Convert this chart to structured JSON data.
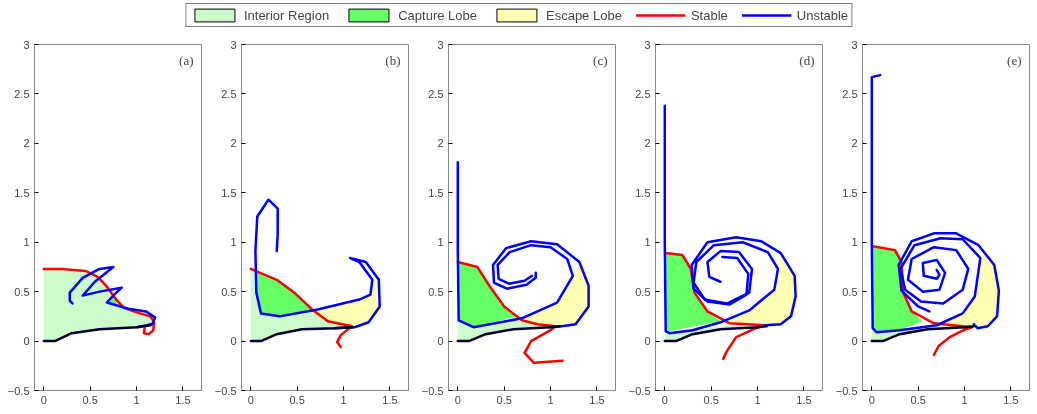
{
  "chart_data": [
    {
      "type": "line",
      "xlim": [
        -0.1,
        1.7
      ],
      "ylim": [
        -0.5,
        3
      ],
      "xticks": [
        0,
        0.5,
        1,
        1.5
      ],
      "yticks": [
        -0.5,
        0,
        0.5,
        1,
        1.5,
        2,
        2.5,
        3
      ],
      "grid": false,
      "legend": "top",
      "annotations": [
        "(a)"
      ],
      "series": [
        {
          "name": "Interior Region",
          "type": "area",
          "color": "#ccfccc",
          "x": [
            0,
            0,
            0.2,
            0.45,
            0.58,
            0.68,
            0.78,
            0.86,
            1.0,
            1.15,
            1.19,
            1.15,
            1.0,
            0.6,
            0.3,
            0.12
          ],
          "values": [
            0,
            0.73,
            0.73,
            0.71,
            0.65,
            0.55,
            0.42,
            0.34,
            0.29,
            0.25,
            0.19,
            0.16,
            0.14,
            0.12,
            0.08,
            0
          ]
        },
        {
          "name": "Capture Lobe",
          "type": "area",
          "color": "#66ff66",
          "x": [
            0.68,
            0.75,
            0.8
          ],
          "values": [
            0.39,
            0.45,
            0.37
          ]
        },
        {
          "name": "Escape Lobe",
          "type": "area",
          "color": "#ffffb3"
        },
        {
          "name": "Stable",
          "color": "#ff0000",
          "x": [
            0,
            0.2,
            0.45,
            0.58,
            0.68,
            0.78,
            0.86,
            1.0,
            1.15,
            1.19,
            1.18,
            1.13,
            1.08,
            1.09,
            1.15
          ],
          "values": [
            0.73,
            0.73,
            0.71,
            0.65,
            0.55,
            0.42,
            0.34,
            0.29,
            0.25,
            0.19,
            0.11,
            0.07,
            0.08,
            0.15,
            0.17
          ]
        },
        {
          "name": "Unstable",
          "color": "#0000ff",
          "x": [
            1.0,
            1.17,
            1.2,
            1.1,
            0.9,
            0.68,
            0.76,
            0.84,
            0.6,
            0.42,
            0.55,
            0.75,
            0.6,
            0.42,
            0.28,
            0.28,
            0.31
          ],
          "values": [
            0.14,
            0.17,
            0.24,
            0.3,
            0.33,
            0.39,
            0.47,
            0.54,
            0.5,
            0.46,
            0.6,
            0.75,
            0.73,
            0.64,
            0.49,
            0.41,
            0.38
          ]
        },
        {
          "color": "#000033",
          "x": [
            0,
            0.12,
            0.3,
            0.6,
            1.0,
            1.15
          ],
          "values": [
            0,
            0,
            0.08,
            0.12,
            0.14,
            0.16
          ]
        }
      ]
    },
    {
      "type": "line",
      "xlim": [
        -0.1,
        1.7
      ],
      "ylim": [
        -0.5,
        3
      ],
      "xticks": [
        0,
        0.5,
        1,
        1.5
      ],
      "yticks": [
        -0.5,
        0,
        0.5,
        1,
        1.5,
        2,
        2.5,
        3
      ],
      "grid": false,
      "annotations": [
        "(b)"
      ],
      "series": [
        {
          "type": "area",
          "color": "#ccfccc",
          "x": [
            0,
            0,
            0.28,
            0.48,
            0.66,
            0.83,
            1.0,
            1.09,
            0.9,
            0.55,
            0.28,
            0.11
          ],
          "values": [
            0,
            0.73,
            0.62,
            0.48,
            0.32,
            0.2,
            0.15,
            0.15,
            0.13,
            0.12,
            0.07,
            0
          ]
        },
        {
          "type": "area",
          "color": "#66ff66",
          "x": [
            0.02,
            0.28,
            0.48,
            0.67,
            0.31,
            0.11,
            0.06,
            0.05
          ],
          "values": [
            0.73,
            0.62,
            0.48,
            0.3,
            0.25,
            0.28,
            0.49,
            0.7
          ]
        },
        {
          "type": "area",
          "color": "#ffffb3",
          "x": [
            0.67,
            0.83,
            1.09,
            1.27,
            1.39,
            1.38,
            1.31,
            1.29,
            1.17,
            0.9
          ],
          "values": [
            0.3,
            0.2,
            0.15,
            0.19,
            0.35,
            0.6,
            0.62,
            0.47,
            0.42,
            0.36
          ]
        },
        {
          "color": "#ff0000",
          "x": [
            0,
            0.28,
            0.48,
            0.66,
            0.83,
            1.09,
            0.97,
            0.93,
            0.97
          ],
          "values": [
            0.73,
            0.62,
            0.48,
            0.32,
            0.2,
            0.15,
            0.06,
            -0.01,
            -0.06
          ]
        },
        {
          "color": "#0000ff",
          "x": [
            0.9,
            1.12,
            1.27,
            1.39,
            1.38,
            1.24,
            1.07,
            1.17,
            1.31,
            1.29,
            1.17,
            0.72,
            0.31,
            0.11,
            0.06,
            0.05,
            0.07,
            0.19,
            0.29,
            0.29,
            0.28
          ],
          "values": [
            0.13,
            0.14,
            0.19,
            0.35,
            0.62,
            0.8,
            0.84,
            0.8,
            0.62,
            0.47,
            0.42,
            0.32,
            0.25,
            0.28,
            0.49,
            0.91,
            1.26,
            1.43,
            1.34,
            1.08,
            0.91
          ]
        },
        {
          "color": "#000033",
          "x": [
            0,
            0.11,
            0.28,
            0.55,
            0.9,
            1.1
          ],
          "values": [
            0,
            0,
            0.07,
            0.12,
            0.13,
            0.14
          ]
        }
      ]
    },
    {
      "type": "line",
      "xlim": [
        -0.1,
        1.7
      ],
      "ylim": [
        -0.5,
        3
      ],
      "xticks": [
        0,
        0.5,
        1,
        1.5
      ],
      "yticks": [
        -0.5,
        0,
        0.5,
        1,
        1.5,
        2,
        2.5,
        3
      ],
      "grid": false,
      "annotations": [
        "(c)"
      ],
      "series": [
        {
          "type": "area",
          "color": "#ccfccc",
          "x": [
            0,
            0,
            0.21,
            0.34,
            0.5,
            0.69,
            0.86,
            1.05,
            0.6,
            0.3,
            0.12
          ],
          "values": [
            0,
            0.8,
            0.75,
            0.56,
            0.35,
            0.21,
            0.17,
            0.15,
            0.12,
            0.07,
            0
          ]
        },
        {
          "type": "area",
          "color": "#66ff66",
          "x": [
            0.01,
            0.21,
            0.34,
            0.5,
            0.62,
            0.17,
            0.01
          ],
          "values": [
            0.8,
            0.75,
            0.56,
            0.35,
            0.25,
            0.14,
            0.21
          ]
        },
        {
          "type": "area",
          "color": "#ffffb3",
          "x": [
            0.62,
            0.69,
            0.86,
            1.12,
            1.27,
            1.41,
            1.41,
            1.31,
            1.24,
            1.07,
            0.69
          ],
          "values": [
            0.25,
            0.21,
            0.17,
            0.15,
            0.17,
            0.35,
            0.56,
            0.8,
            0.66,
            0.39,
            0.23
          ]
        },
        {
          "color": "#ff0000",
          "x": [
            0,
            0.21,
            0.34,
            0.5,
            0.69,
            0.86,
            1.05,
            1.0,
            0.79,
            0.72,
            0.82,
            1.13
          ],
          "values": [
            0.8,
            0.75,
            0.56,
            0.35,
            0.21,
            0.17,
            0.15,
            0.11,
            0,
            -0.12,
            -0.22,
            -0.2
          ]
        },
        {
          "color": "#0000ff",
          "x": [
            1.0,
            1.12,
            1.27,
            1.41,
            1.41,
            1.31,
            1.07,
            0.79,
            0.52,
            0.38,
            0.39,
            0.53,
            0.74,
            0.84,
            0.84
          ],
          "values": [
            0.14,
            0.15,
            0.17,
            0.35,
            0.56,
            0.8,
            0.98,
            1.01,
            0.94,
            0.77,
            0.59,
            0.53,
            0.57,
            0.64,
            0.69
          ]
        },
        {
          "color": "#0000ff",
          "x": [
            0,
            0,
            0.01,
            0.17,
            0.69,
            1.07,
            1.24,
            1.18,
            1.0,
            0.79,
            0.56,
            0.43,
            0.44,
            0.55,
            0.72,
            0.8
          ],
          "values": [
            1.81,
            0.91,
            0.21,
            0.14,
            0.23,
            0.39,
            0.66,
            0.83,
            0.95,
            0.97,
            0.9,
            0.77,
            0.63,
            0.58,
            0.61,
            0.66
          ]
        },
        {
          "color": "#000033",
          "x": [
            0,
            0.12,
            0.3,
            0.6,
            1.0,
            1.1
          ],
          "values": [
            0,
            0,
            0.07,
            0.12,
            0.14,
            0.15
          ]
        }
      ]
    },
    {
      "type": "line",
      "xlim": [
        -0.1,
        1.7
      ],
      "ylim": [
        -0.5,
        3
      ],
      "xticks": [
        0,
        0.5,
        1,
        1.5
      ],
      "yticks": [
        -0.5,
        0,
        0.5,
        1,
        1.5,
        2,
        2.5,
        3
      ],
      "grid": false,
      "annotations": [
        "(d)"
      ],
      "series": [
        {
          "type": "area",
          "color": "#ccfccc",
          "x": [
            0,
            0,
            0.3,
            0.7,
            1.08,
            0.6,
            0.3,
            0.12
          ],
          "values": [
            0,
            0.1,
            0.11,
            0.16,
            0.16,
            0.12,
            0.07,
            0
          ]
        },
        {
          "type": "area",
          "color": "#66ff66",
          "x": [
            0.01,
            0.19,
            0.28,
            0.32,
            0.46,
            0.6,
            0.05,
            0.01
          ],
          "values": [
            0.89,
            0.87,
            0.73,
            0.49,
            0.3,
            0.2,
            0.1,
            0.12
          ]
        },
        {
          "type": "area",
          "color": "#ffffb3",
          "x": [
            0.6,
            0.7,
            1.08,
            1.25,
            1.36,
            1.41,
            1.4,
            1.25,
            1.22,
            1.18,
            0.91
          ],
          "values": [
            0.2,
            0.18,
            0.16,
            0.17,
            0.25,
            0.45,
            0.66,
            0.89,
            0.73,
            0.52,
            0.31
          ]
        },
        {
          "color": "#ff0000",
          "x": [
            0.01,
            0.19,
            0.28,
            0.32,
            0.46,
            0.7,
            1.08,
            0.98,
            0.77,
            0.67,
            0.63
          ],
          "values": [
            0.89,
            0.87,
            0.73,
            0.49,
            0.3,
            0.18,
            0.16,
            0.13,
            0.04,
            -0.1,
            -0.18
          ]
        },
        {
          "color": "#0000ff",
          "x": [
            0,
            0,
            0.01,
            0.05,
            0.3,
            0.6,
            0.91,
            1.18,
            1.22,
            1.11,
            0.84,
            0.53,
            0.34,
            0.31,
            0.43,
            0.67,
            0.91,
            0.94,
            0.8,
            0.6,
            0.46,
            0.48,
            0.6
          ],
          "values": [
            2.38,
            1.0,
            0.1,
            0.08,
            0.11,
            0.19,
            0.31,
            0.52,
            0.73,
            0.9,
            1.0,
            0.97,
            0.8,
            0.59,
            0.42,
            0.38,
            0.49,
            0.73,
            0.9,
            0.91,
            0.8,
            0.65,
            0.6
          ]
        },
        {
          "color": "#0000ff",
          "x": [
            1.08,
            1.25,
            1.36,
            1.41,
            1.4,
            1.25,
            1.04,
            0.77,
            0.46,
            0.29,
            0.31,
            0.46,
            0.7,
            0.88,
            0.9,
            0.78,
            0.62
          ],
          "values": [
            0.16,
            0.17,
            0.25,
            0.45,
            0.66,
            0.89,
            1.01,
            1.05,
            1.0,
            0.77,
            0.53,
            0.4,
            0.37,
            0.47,
            0.68,
            0.84,
            0.85
          ]
        },
        {
          "color": "#000033",
          "x": [
            0,
            0.12,
            0.3,
            0.6,
            1.0,
            1.1
          ],
          "values": [
            0,
            0,
            0.07,
            0.12,
            0.14,
            0.15
          ]
        }
      ]
    },
    {
      "type": "line",
      "xlim": [
        -0.1,
        1.7
      ],
      "ylim": [
        -0.5,
        3
      ],
      "xticks": [
        0,
        0.5,
        1,
        1.5
      ],
      "yticks": [
        -0.5,
        0,
        0.5,
        1,
        1.5,
        2,
        2.5,
        3
      ],
      "grid": false,
      "annotations": [
        "(e)"
      ],
      "series": [
        {
          "type": "area",
          "color": "#ccfccc",
          "x": [
            0,
            0,
            0.3,
            0.7,
            1.08,
            0.6,
            0.3,
            0.12
          ],
          "values": [
            0,
            0.12,
            0.11,
            0.16,
            0.14,
            0.12,
            0.07,
            0
          ]
        },
        {
          "type": "area",
          "color": "#66ff66",
          "x": [
            0.01,
            0.25,
            0.32,
            0.34,
            0.43,
            0.55,
            0.3,
            0.05,
            0.01
          ],
          "values": [
            0.96,
            0.92,
            0.8,
            0.49,
            0.3,
            0.2,
            0.11,
            0.09,
            0.13
          ]
        },
        {
          "type": "area",
          "color": "#ffffb3",
          "x": [
            0.6,
            0.67,
            1.08,
            1.14,
            1.25,
            1.35,
            1.37,
            1.32,
            1.15,
            1.17,
            1.11,
            0.98,
            0.7
          ],
          "values": [
            0.2,
            0.18,
            0.14,
            0.13,
            0.15,
            0.25,
            0.51,
            0.77,
            0.97,
            0.84,
            0.45,
            0.28,
            0.16
          ]
        },
        {
          "color": "#ff0000",
          "x": [
            0.01,
            0.25,
            0.32,
            0.34,
            0.43,
            0.67,
            1.08,
            1.01,
            0.84,
            0.72,
            0.67
          ],
          "values": [
            0.96,
            0.92,
            0.8,
            0.49,
            0.3,
            0.18,
            0.14,
            0.12,
            0.04,
            -0.05,
            -0.14
          ]
        },
        {
          "color": "#0000ff",
          "x": [
            0.09,
            0,
            0,
            0.01,
            0.05,
            0.3,
            0.7,
            0.98,
            1.11,
            1.17,
            0.98,
            0.74,
            0.46,
            0.31,
            0.36,
            0.53,
            0.77,
            0.98,
            1.04,
            0.91,
            0.67,
            0.43,
            0.39,
            0.55,
            0.73,
            0.79,
            0.7,
            0.55,
            0.56,
            0.7,
            0.73,
            0.7
          ],
          "values": [
            2.69,
            2.67,
            1.0,
            0.13,
            0.09,
            0.11,
            0.16,
            0.28,
            0.45,
            0.84,
            1.03,
            1.04,
            0.97,
            0.73,
            0.52,
            0.4,
            0.38,
            0.52,
            0.73,
            0.92,
            0.95,
            0.83,
            0.62,
            0.5,
            0.52,
            0.69,
            0.82,
            0.79,
            0.66,
            0.63,
            0.67,
            0.72
          ]
        },
        {
          "color": "#0000ff",
          "x": [
            1.1,
            1.14,
            1.25,
            1.35,
            1.37,
            1.32,
            1.15,
            0.91,
            0.67,
            0.43,
            0.29,
            0.32,
            0.5,
            0.62
          ],
          "values": [
            0.17,
            0.13,
            0.15,
            0.25,
            0.51,
            0.77,
            0.97,
            1.09,
            1.09,
            1.01,
            0.77,
            0.51,
            0.35,
            0.3
          ]
        },
        {
          "color": "#000033",
          "x": [
            0,
            0.12,
            0.3,
            0.6,
            1.0,
            1.1
          ],
          "values": [
            0,
            0,
            0.07,
            0.12,
            0.14,
            0.15
          ]
        }
      ]
    }
  ]
}
